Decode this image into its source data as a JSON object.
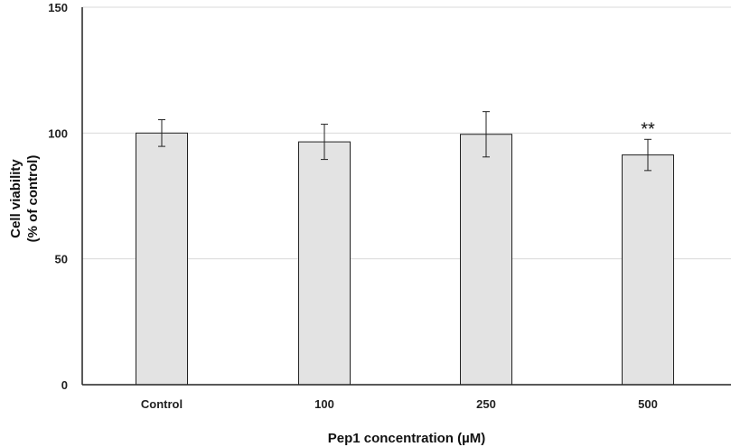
{
  "chart_data": {
    "type": "bar",
    "categories": [
      "Control",
      "100",
      "250",
      "500"
    ],
    "values": [
      100,
      96.5,
      99.5,
      91.3
    ],
    "errors": [
      5.3,
      7.0,
      9.0,
      6.2
    ],
    "annotations": [
      "",
      "",
      "",
      "**"
    ],
    "xlabel": "Pep1 concentration (µM)",
    "ylabel_lines": [
      "Cell viability",
      "(% of control)"
    ],
    "ylim": [
      0,
      150
    ],
    "yticks": [
      0,
      50,
      100,
      150
    ],
    "grid": true,
    "bar_color": "#e3e3e3",
    "bar_edge_color": "#222222"
  }
}
